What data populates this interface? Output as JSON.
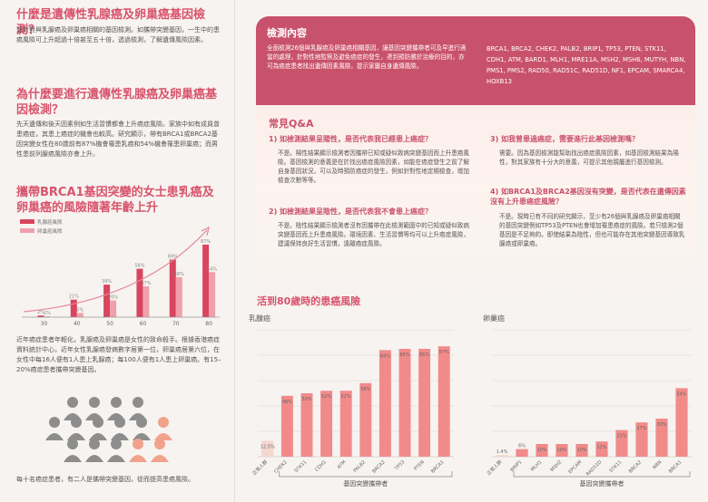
{
  "left": {
    "q1_title": "什麼是遺傳性乳腺癌及卵巢癌基因檢測？",
    "q1_body": "是針對與乳腺癌及卵巢癌相關的基因檢測。如攜帶突變基因，一生中的患癌風險可上升超過十倍甚至五十倍，透過檢測，了解遺傳風險因素。",
    "q2_title": "為什麼要進行遺傳性乳腺癌及卵巢癌基因檢測？",
    "q2_body": "先天遺傳和後天因素例如生活習慣都會上升癌症風險。家族中如有成員曾患癌症，其患上癌症的機會也較高。研究顯示，帶有BRCA1或BRCA2基因突變女性在80歲前有87%機會罹患乳癌和54%機會罹患卵巢癌；而男性患前列腺癌風險亦會上升。",
    "q3_title": "攜帶BRCA1基因突變的女士患乳癌及卵巢癌的風險隨著年齡上升",
    "q4_body": "近年癌症患者年輕化，乳腺癌及卵巢癌是女性的致命殺手。根據香港癌症資料統計中心，近年女性乳腺癌發病數字居第一位，卵巢癌居第六位，在女性中每16人便有1人患上乳腺癌；每100人便有1人患上卵巢癌。有15–20%癌症患者攜帶突變基因。",
    "caption": "每十名癌症患者，有二人是攜帶突變基因，從而提高患癌風險。"
  },
  "right": {
    "test_title": "檢測內容",
    "test_body": "全面檢測26個與乳腺癌及卵巢癌相關基因，讓基因突變攜帶者可及早進行適當的處理，針對性地監察及避免癌症的發生，達到預防勝於治療的目的，亦可為癌症患者找出遺傳因素風險，提示家屬自身遺傳風險。",
    "genes": "BRCA1, BRCA2, CHEK2, PALB2, BRIP1, TP53, PTEN, STK11, CDH1, ATM, BARD1, MLH1, MRE11A, MSH2, MSH6, MUTYH, NBN, PMS1, PMS2, RAD50, RAD51C, RAD51D, NF1, EPCAM, SMARCA4, HOXB13",
    "qa_title": "常見Q&A",
    "qa": [
      {
        "q": "1) 如檢測結果呈陽性，是否代表我已經患上癌症？",
        "a": "不是。陽性結果顯示檢測者因攜帶已知或疑似致病突變基因而上升患癌風險。基因檢測的意義是在於找出癌症風險因素，如能在癌症發生之前了解自身基因狀況，可以及時預防癌症的發生，例如針對性地定期檢查，增加檢查次數等等。"
      },
      {
        "q": "2) 如檢測結果呈陰性，是否代表我不會患上癌症？",
        "a": "不是。陰性結果顯示檢測者沒有因攜帶在此檢測範圍中的已知或疑似致病突變基因而上升患癌風險。環境因素、生活習慣等均可以上升癌症風險，建議保持良好生活習慣，遠離癌症風險。"
      },
      {
        "q": "3) 如我曾患過癌症，需要進行此基因檢測嗎？",
        "a": "需要。因為基因檢測能幫助找出癌症風險因素，如基因檢測結果為陽性，對其家族有十分大的意義，可提示其他親屬進行基因檢測。"
      },
      {
        "q": "4) 如BRCA1及BRCA2基因沒有突變，是否代表在遺傳因素沒有上升患癌症風險？",
        "a": "不是。現時已有不同的研究顯示，至少有26個與乳腺癌及卵巢癌相關的基因突變例如TP53及PTEN也會增加罹患癌症的風險。若只檢測2個基因是不足夠的。即使結果為陰性，但也可能存在其他突變基因導致乳腺癌或卵巢癌。"
      }
    ],
    "lifetime_title": "活到80歲時的患癌風險"
  },
  "chart_data": [
    {
      "type": "bar",
      "title": "攜帶BRCA1基因突變的女士患乳癌及卵巢癌的風險隨著年齡上升",
      "categories": [
        "30",
        "40",
        "50",
        "60",
        "70",
        "80"
      ],
      "series": [
        {
          "name": "乳腺癌風險",
          "values": [
            2,
            21,
            39,
            58,
            69,
            87
          ],
          "color": "#d9445e"
        },
        {
          "name": "卵巢癌風險",
          "values": [
            1,
            5,
            20,
            37,
            48,
            54
          ],
          "color": "#f0a0ab"
        }
      ],
      "ylim": [
        0,
        100
      ]
    },
    {
      "type": "bar",
      "title": "乳腺癌",
      "xlabel": "基因突變攜帶者",
      "categories": [
        "正常人群",
        "CHEK2",
        "STK11",
        "CDH1",
        "ATM",
        "PALB2",
        "BRCA2",
        "TP53",
        "PTEN",
        "BRCA1"
      ],
      "values": [
        12.5,
        48,
        50,
        52,
        52,
        58,
        84,
        85,
        85,
        87
      ],
      "labels": [
        "12.5%",
        "48%",
        "50%",
        "52%",
        "52%",
        "58%",
        "84%",
        "85%",
        "85%",
        "87%"
      ],
      "ylim": [
        0,
        100
      ]
    },
    {
      "type": "bar",
      "title": "卵巢癌",
      "xlabel": "基因突變攜帶者",
      "categories": [
        "正常人群",
        "BRIP1",
        "MLH1",
        "MSH2",
        "EPCAM",
        "RAD51D",
        "STK11",
        "BRCA2",
        "NBN",
        "BRCA1"
      ],
      "values": [
        1.4,
        6,
        10,
        10,
        10,
        12,
        21,
        27,
        30,
        54
      ],
      "labels": [
        "1.4%",
        "6%",
        "10%",
        "10%",
        "10%",
        "12%",
        "21%",
        "27%",
        "30%",
        "54%"
      ],
      "ylim": [
        0,
        100
      ]
    }
  ],
  "colors": {
    "accent": "#c8526b",
    "title_pink": "#d8546c",
    "bar": "#f18b8a"
  },
  "icons": {
    "figure": "person-icon"
  }
}
